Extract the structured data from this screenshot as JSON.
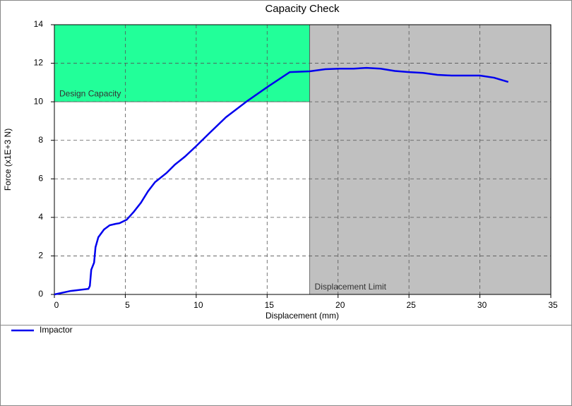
{
  "chart_data": {
    "type": "line",
    "title": "Capacity Check",
    "x_label": "Displacement (mm)",
    "y_label": "Force (x1E+3 N)",
    "xlim": [
      0,
      35
    ],
    "xticks": [
      0,
      5,
      10,
      15,
      20,
      25,
      30,
      35
    ],
    "ylim": [
      0,
      14
    ],
    "yticks": [
      0,
      2,
      4,
      6,
      8,
      10,
      12,
      14
    ],
    "grid": true,
    "legend": "bottom",
    "regions": [
      {
        "label": "Design Capacity",
        "x": [
          0,
          18
        ],
        "y": [
          10,
          14
        ],
        "color": "#22ff99"
      },
      {
        "label": "Displacement Limit",
        "x": [
          18,
          35
        ],
        "y": [
          0,
          14
        ],
        "color": "#c0c0c0"
      }
    ],
    "series": [
      {
        "name": "Impactor",
        "color": "#0000ee",
        "x": [
          0,
          1.14,
          2.4,
          2.5,
          2.6,
          2.8,
          2.9,
          3.1,
          3.5,
          3.9,
          4.3,
          4.6,
          5.1,
          5.6,
          6.1,
          6.6,
          7.1,
          7.9,
          8.5,
          9.2,
          10.0,
          10.9,
          12.1,
          13.6,
          15.1,
          16.6,
          18.0,
          19.1,
          20.1,
          21.1,
          22.0,
          23.0,
          24.0,
          25.0,
          26.0,
          27.0,
          28.0,
          29.0,
          30.0,
          31.0,
          32.0
        ],
        "values": [
          0,
          0.18,
          0.29,
          0.44,
          1.28,
          1.65,
          2.45,
          2.97,
          3.37,
          3.59,
          3.66,
          3.7,
          3.88,
          4.29,
          4.76,
          5.35,
          5.83,
          6.3,
          6.74,
          7.15,
          7.7,
          8.35,
          9.2,
          10.04,
          10.81,
          11.54,
          11.58,
          11.69,
          11.72,
          11.72,
          11.76,
          11.72,
          11.6,
          11.54,
          11.5,
          11.4,
          11.36,
          11.36,
          11.36,
          11.25,
          11.03
        ]
      }
    ]
  }
}
